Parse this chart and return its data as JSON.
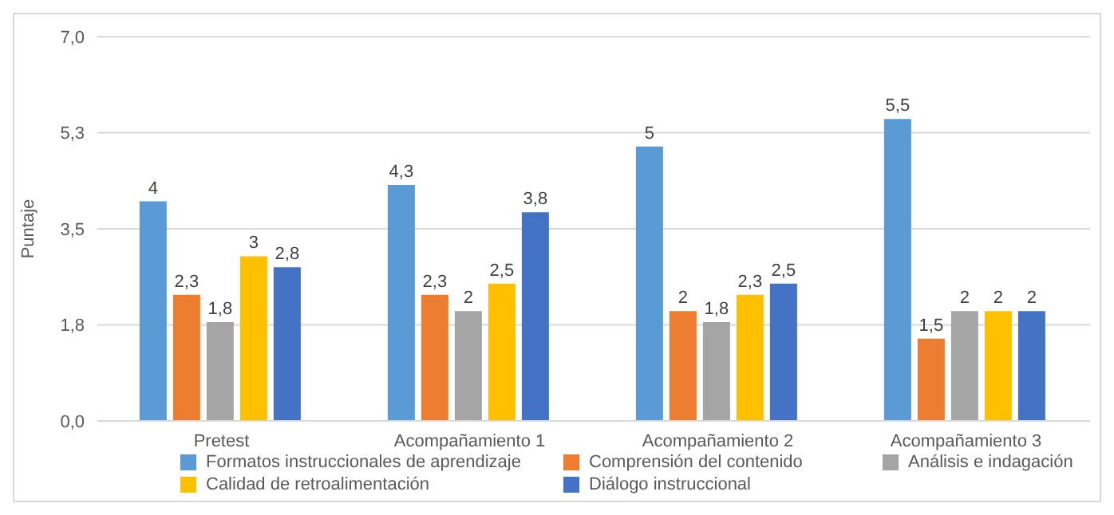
{
  "chart_data": {
    "type": "bar",
    "ylabel": "Puntaje",
    "categories": [
      "Pretest",
      "Acompañamiento 1",
      "Acompañamiento 2",
      "Acompañamiento 3"
    ],
    "series": [
      {
        "name": "Formatos instruccionales de aprendizaje",
        "color": "#5b9bd5",
        "values": [
          4,
          4.3,
          5,
          5.5
        ],
        "value_labels": [
          "4",
          "4,3",
          "5",
          "5,5"
        ]
      },
      {
        "name": "Comprensión del contenido",
        "color": "#ed7d31",
        "values": [
          2.3,
          2.3,
          2,
          1.5
        ],
        "value_labels": [
          "2,3",
          "2,3",
          "2",
          "1,5"
        ]
      },
      {
        "name": "Análisis e indagación",
        "color": "#a5a5a5",
        "values": [
          1.8,
          2,
          1.8,
          2
        ],
        "value_labels": [
          "1,8",
          "2",
          "1,8",
          "2"
        ]
      },
      {
        "name": "Calidad de retroalimentación",
        "color": "#ffc000",
        "values": [
          3,
          2.5,
          2.3,
          2
        ],
        "value_labels": [
          "3",
          "2,5",
          "2,3",
          "2"
        ]
      },
      {
        "name": "Diálogo instruccional",
        "color": "#4472c4",
        "values": [
          2.8,
          3.8,
          2.5,
          2
        ],
        "value_labels": [
          "2,8",
          "3,8",
          "2,5",
          "2"
        ]
      }
    ],
    "ylim": [
      0,
      7
    ],
    "yticks": [
      {
        "value": 0,
        "label": "0,0"
      },
      {
        "value": 1.75,
        "label": "1,8"
      },
      {
        "value": 3.5,
        "label": "3,5"
      },
      {
        "value": 5.25,
        "label": "5,3"
      },
      {
        "value": 7,
        "label": "7,0"
      }
    ],
    "grid": "y",
    "legend": "bottom"
  }
}
